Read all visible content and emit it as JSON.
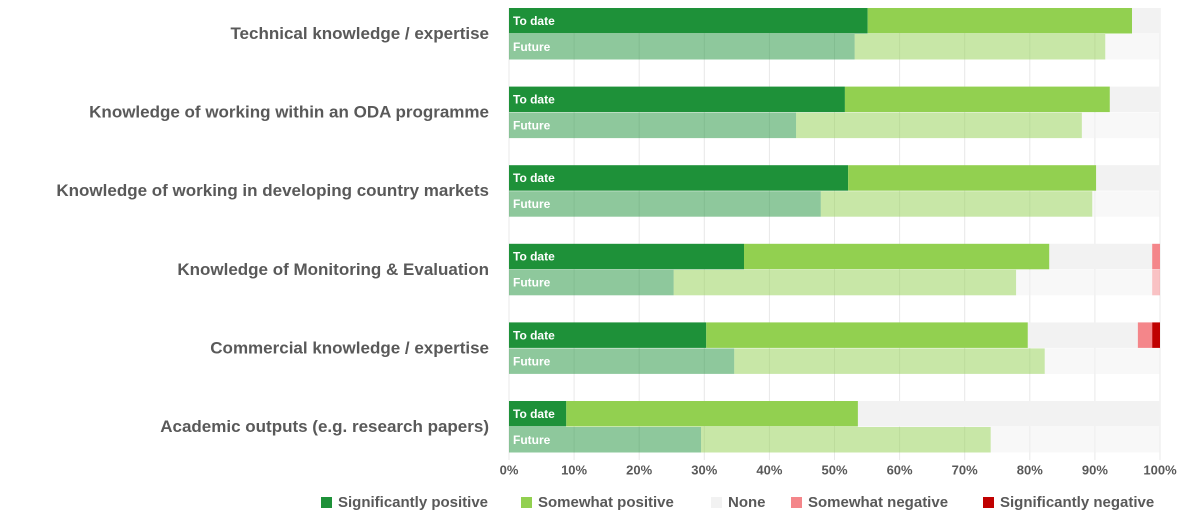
{
  "chart_data": {
    "type": "grouped_stacked_barh",
    "categories": [
      "Technical knowledge / expertise",
      "Knowledge of working within an ODA programme",
      "Knowledge of working in developing country markets",
      "Knowledge of Monitoring & Evaluation",
      "Commercial knowledge / expertise",
      "Academic outputs (e.g. research papers)"
    ],
    "bar_labels": [
      "To date",
      "Future"
    ],
    "future_opacity": 0.5,
    "series": [
      {
        "name": "Significantly positive",
        "color": "#1e9139",
        "values": [
          [
            55.1,
            53.1
          ],
          [
            51.6,
            44.1
          ],
          [
            52.1,
            47.9
          ],
          [
            36.1,
            25.3
          ],
          [
            30.3,
            34.6
          ],
          [
            8.8,
            29.5
          ]
        ]
      },
      {
        "name": "Somewhat positive",
        "color": "#92d050",
        "values": [
          [
            40.6,
            38.5
          ],
          [
            40.7,
            43.9
          ],
          [
            38.1,
            41.7
          ],
          [
            46.9,
            52.6
          ],
          [
            49.4,
            47.7
          ],
          [
            44.8,
            44.5
          ]
        ]
      },
      {
        "name": "None",
        "color": "#f2f2f2",
        "values": [
          [
            4.3,
            8.4
          ],
          [
            7.7,
            12.0
          ],
          [
            9.8,
            10.4
          ],
          [
            15.8,
            20.9
          ],
          [
            16.9,
            17.7
          ],
          [
            46.4,
            26.0
          ]
        ]
      },
      {
        "name": "Somewhat negative",
        "color": "#f4868a",
        "values": [
          [
            0,
            0
          ],
          [
            0,
            0
          ],
          [
            0,
            0
          ],
          [
            1.2,
            1.2
          ],
          [
            2.2,
            0
          ],
          [
            0,
            0
          ]
        ]
      },
      {
        "name": "Significantly negative",
        "color": "#c00000",
        "values": [
          [
            0,
            0
          ],
          [
            0,
            0
          ],
          [
            0,
            0
          ],
          [
            0,
            0
          ],
          [
            1.2,
            0
          ],
          [
            0,
            0
          ]
        ]
      }
    ],
    "xlim": [
      0,
      100
    ],
    "xticks": [
      {
        "value": 0,
        "label": "0%"
      },
      {
        "value": 10,
        "label": "10%"
      },
      {
        "value": 20,
        "label": "20%"
      },
      {
        "value": 30,
        "label": "30%"
      },
      {
        "value": 40,
        "label": "40%"
      },
      {
        "value": 50,
        "label": "50%"
      },
      {
        "value": 60,
        "label": "60%"
      },
      {
        "value": 70,
        "label": "70%"
      },
      {
        "value": 80,
        "label": "80%"
      },
      {
        "value": 90,
        "label": "90%"
      },
      {
        "value": 100,
        "label": "100%"
      }
    ],
    "grid": true,
    "legend": "bottom"
  }
}
